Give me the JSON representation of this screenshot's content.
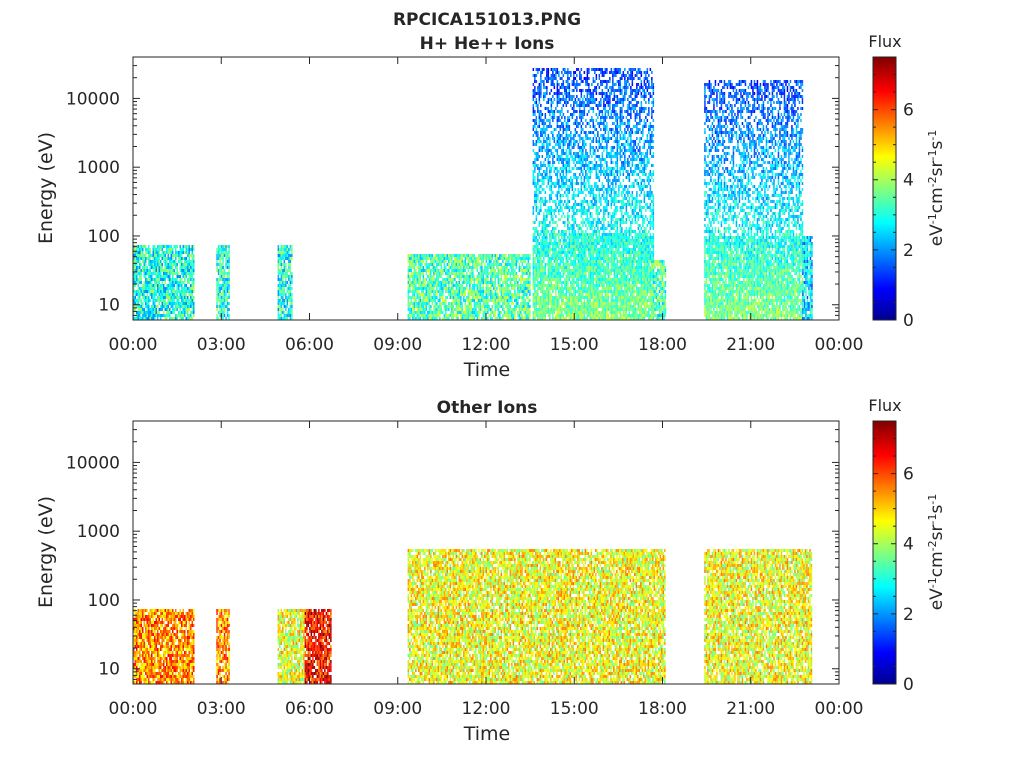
{
  "figure": {
    "filename": "RPCICA151013.PNG"
  },
  "colorbar": {
    "label": "Flux",
    "unit_text": "eV-1cm-2sr-1s-1",
    "ticks": [
      "0",
      "2",
      "4",
      "6"
    ],
    "range": [
      0,
      7.5
    ],
    "colormap": "jet"
  },
  "chart_data": [
    {
      "type": "heatmap",
      "title": "H+ He++ Ions",
      "xlabel": "Time",
      "ylabel": "Energy (eV)",
      "y_scale": "log",
      "ylim": [
        6,
        40000
      ],
      "xlim_hours": [
        0,
        24
      ],
      "x_tick_labels": [
        "00:00",
        "03:00",
        "06:00",
        "09:00",
        "12:00",
        "15:00",
        "18:00",
        "21:00",
        "00:00"
      ],
      "y_tick_labels": [
        "10",
        "100",
        "1000",
        "10000"
      ],
      "observation_blocks": [
        {
          "start": "00:00",
          "end": "02:05",
          "energy_max_eV": 80,
          "mean_flux": 3.0
        },
        {
          "start": "02:50",
          "end": "03:15",
          "energy_max_eV": 80,
          "mean_flux": 3.0
        },
        {
          "start": "04:55",
          "end": "05:25",
          "energy_max_eV": 80,
          "mean_flux": 3.0
        },
        {
          "start": "09:20",
          "end": "13:30",
          "energy_max_eV": 60,
          "mean_flux": 3.4
        },
        {
          "start": "13:35",
          "end": "17:40",
          "energy_max_eV": 30000,
          "mean_flux": 2.2
        },
        {
          "start": "17:40",
          "end": "18:05",
          "energy_max_eV": 45,
          "mean_flux": 3.4
        },
        {
          "start": "19:25",
          "end": "22:45",
          "energy_max_eV": 20000,
          "mean_flux": 2.2
        },
        {
          "start": "22:45",
          "end": "23:05",
          "energy_max_eV": 100,
          "mean_flux": 2.5
        }
      ]
    },
    {
      "type": "heatmap",
      "title": "Other Ions",
      "xlabel": "Time",
      "ylabel": "Energy (eV)",
      "y_scale": "log",
      "ylim": [
        6,
        40000
      ],
      "xlim_hours": [
        0,
        24
      ],
      "x_tick_labels": [
        "00:00",
        "03:00",
        "06:00",
        "09:00",
        "12:00",
        "15:00",
        "18:00",
        "21:00",
        "00:00"
      ],
      "y_tick_labels": [
        "10",
        "100",
        "1000",
        "10000"
      ],
      "observation_blocks": [
        {
          "start": "00:00",
          "end": "02:05",
          "energy_max_eV": 80,
          "mean_flux": 5.5
        },
        {
          "start": "02:50",
          "end": "03:15",
          "energy_max_eV": 80,
          "mean_flux": 5.5
        },
        {
          "start": "04:55",
          "end": "05:50",
          "energy_max_eV": 80,
          "mean_flux": 4.5
        },
        {
          "start": "05:50",
          "end": "06:45",
          "energy_max_eV": 80,
          "mean_flux": 6.5
        },
        {
          "start": "09:20",
          "end": "18:05",
          "energy_max_eV": 600,
          "mean_flux": 4.6
        },
        {
          "start": "19:25",
          "end": "23:05",
          "energy_max_eV": 600,
          "mean_flux": 4.6
        }
      ]
    }
  ]
}
